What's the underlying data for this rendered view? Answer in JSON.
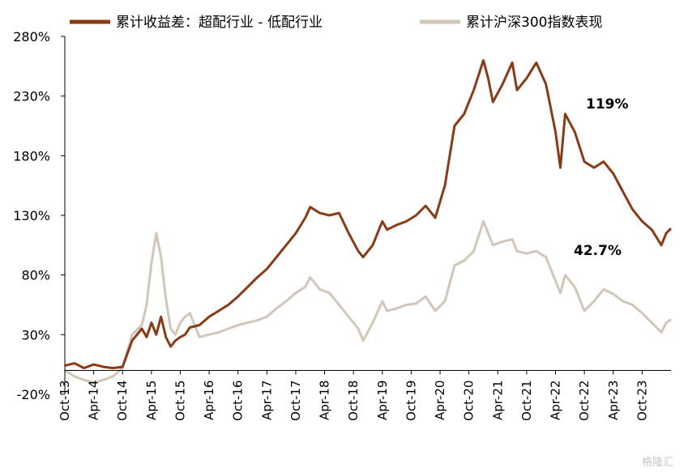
{
  "chart_data": {
    "type": "line",
    "title": "",
    "xlabel": "",
    "ylabel": "",
    "ylim": [
      -20,
      280
    ],
    "y_ticks": [
      "-20%",
      "30%",
      "80%",
      "130%",
      "180%",
      "230%",
      "280%"
    ],
    "x_ticks": [
      "Oct-13",
      "Apr-14",
      "Oct-14",
      "Apr-15",
      "Oct-15",
      "Apr-16",
      "Oct-16",
      "Apr-17",
      "Oct-17",
      "Apr-18",
      "Oct-18",
      "Apr-19",
      "Oct-19",
      "Apr-20",
      "Oct-20",
      "Apr-21",
      "Oct-21",
      "Apr-22",
      "Oct-22",
      "Apr-23",
      "Oct-23"
    ],
    "legend_position": "top",
    "grid": false,
    "series": [
      {
        "name": "累计收益差：超配行业 - 低配行业",
        "color": "#8B3A14",
        "end_label": "119%",
        "values": [
          [
            "2013-10",
            4
          ],
          [
            "2013-12",
            6
          ],
          [
            "2014-02",
            2
          ],
          [
            "2014-04",
            5
          ],
          [
            "2014-06",
            3
          ],
          [
            "2014-08",
            2
          ],
          [
            "2014-10",
            3
          ],
          [
            "2014-12",
            25
          ],
          [
            "2015-02",
            35
          ],
          [
            "2015-03",
            28
          ],
          [
            "2015-04",
            40
          ],
          [
            "2015-05",
            30
          ],
          [
            "2015-06",
            45
          ],
          [
            "2015-07",
            28
          ],
          [
            "2015-08",
            20
          ],
          [
            "2015-09",
            25
          ],
          [
            "2015-10",
            28
          ],
          [
            "2015-11",
            30
          ],
          [
            "2015-12",
            36
          ],
          [
            "2016-02",
            38
          ],
          [
            "2016-04",
            45
          ],
          [
            "2016-06",
            50
          ],
          [
            "2016-08",
            55
          ],
          [
            "2016-10",
            62
          ],
          [
            "2016-12",
            70
          ],
          [
            "2017-02",
            78
          ],
          [
            "2017-04",
            85
          ],
          [
            "2017-06",
            95
          ],
          [
            "2017-08",
            105
          ],
          [
            "2017-10",
            115
          ],
          [
            "2017-12",
            128
          ],
          [
            "2018-01",
            137
          ],
          [
            "2018-03",
            132
          ],
          [
            "2018-05",
            130
          ],
          [
            "2018-07",
            132
          ],
          [
            "2018-09",
            115
          ],
          [
            "2018-11",
            100
          ],
          [
            "2018-12",
            95
          ],
          [
            "2019-02",
            105
          ],
          [
            "2019-04",
            125
          ],
          [
            "2019-05",
            118
          ],
          [
            "2019-07",
            122
          ],
          [
            "2019-09",
            125
          ],
          [
            "2019-11",
            130
          ],
          [
            "2020-01",
            138
          ],
          [
            "2020-03",
            128
          ],
          [
            "2020-05",
            155
          ],
          [
            "2020-07",
            205
          ],
          [
            "2020-09",
            215
          ],
          [
            "2020-11",
            235
          ],
          [
            "2021-01",
            260
          ],
          [
            "2021-02",
            245
          ],
          [
            "2021-03",
            225
          ],
          [
            "2021-05",
            240
          ],
          [
            "2021-07",
            258
          ],
          [
            "2021-08",
            235
          ],
          [
            "2021-10",
            245
          ],
          [
            "2021-12",
            258
          ],
          [
            "2022-02",
            240
          ],
          [
            "2022-04",
            200
          ],
          [
            "2022-05",
            170
          ],
          [
            "2022-06",
            215
          ],
          [
            "2022-08",
            200
          ],
          [
            "2022-10",
            175
          ],
          [
            "2022-12",
            170
          ],
          [
            "2023-02",
            175
          ],
          [
            "2023-04",
            165
          ],
          [
            "2023-06",
            150
          ],
          [
            "2023-08",
            135
          ],
          [
            "2023-10",
            125
          ],
          [
            "2023-12",
            118
          ],
          [
            "2024-02",
            105
          ],
          [
            "2024-03",
            115
          ],
          [
            "2024-04",
            119
          ]
        ]
      },
      {
        "name": "累计沪深300指数表现",
        "color": "#D1C6B8",
        "end_label": "42.7%",
        "values": [
          [
            "2013-10",
            0
          ],
          [
            "2013-12",
            -5
          ],
          [
            "2014-02",
            -8
          ],
          [
            "2014-04",
            -10
          ],
          [
            "2014-06",
            -8
          ],
          [
            "2014-08",
            -5
          ],
          [
            "2014-10",
            2
          ],
          [
            "2014-12",
            30
          ],
          [
            "2015-02",
            38
          ],
          [
            "2015-03",
            55
          ],
          [
            "2015-04",
            90
          ],
          [
            "2015-05",
            115
          ],
          [
            "2015-06",
            95
          ],
          [
            "2015-07",
            60
          ],
          [
            "2015-08",
            35
          ],
          [
            "2015-09",
            30
          ],
          [
            "2015-10",
            40
          ],
          [
            "2015-11",
            45
          ],
          [
            "2015-12",
            48
          ],
          [
            "2016-02",
            28
          ],
          [
            "2016-04",
            30
          ],
          [
            "2016-06",
            32
          ],
          [
            "2016-08",
            35
          ],
          [
            "2016-10",
            38
          ],
          [
            "2016-12",
            40
          ],
          [
            "2017-02",
            42
          ],
          [
            "2017-04",
            45
          ],
          [
            "2017-06",
            52
          ],
          [
            "2017-08",
            58
          ],
          [
            "2017-10",
            65
          ],
          [
            "2017-12",
            70
          ],
          [
            "2018-01",
            78
          ],
          [
            "2018-03",
            68
          ],
          [
            "2018-05",
            65
          ],
          [
            "2018-07",
            55
          ],
          [
            "2018-09",
            45
          ],
          [
            "2018-11",
            35
          ],
          [
            "2018-12",
            25
          ],
          [
            "2019-02",
            40
          ],
          [
            "2019-04",
            58
          ],
          [
            "2019-05",
            50
          ],
          [
            "2019-07",
            52
          ],
          [
            "2019-09",
            55
          ],
          [
            "2019-11",
            56
          ],
          [
            "2020-01",
            62
          ],
          [
            "2020-03",
            50
          ],
          [
            "2020-05",
            58
          ],
          [
            "2020-07",
            88
          ],
          [
            "2020-09",
            92
          ],
          [
            "2020-11",
            100
          ],
          [
            "2021-01",
            125
          ],
          [
            "2021-02",
            115
          ],
          [
            "2021-03",
            105
          ],
          [
            "2021-05",
            108
          ],
          [
            "2021-07",
            110
          ],
          [
            "2021-08",
            100
          ],
          [
            "2021-10",
            98
          ],
          [
            "2021-12",
            100
          ],
          [
            "2022-02",
            95
          ],
          [
            "2022-04",
            75
          ],
          [
            "2022-05",
            65
          ],
          [
            "2022-06",
            80
          ],
          [
            "2022-08",
            70
          ],
          [
            "2022-10",
            50
          ],
          [
            "2022-12",
            58
          ],
          [
            "2023-02",
            68
          ],
          [
            "2023-04",
            64
          ],
          [
            "2023-06",
            58
          ],
          [
            "2023-08",
            55
          ],
          [
            "2023-10",
            48
          ],
          [
            "2023-12",
            40
          ],
          [
            "2024-02",
            32
          ],
          [
            "2024-03",
            40
          ],
          [
            "2024-04",
            42.7
          ]
        ]
      }
    ]
  },
  "watermark": "格隆汇"
}
